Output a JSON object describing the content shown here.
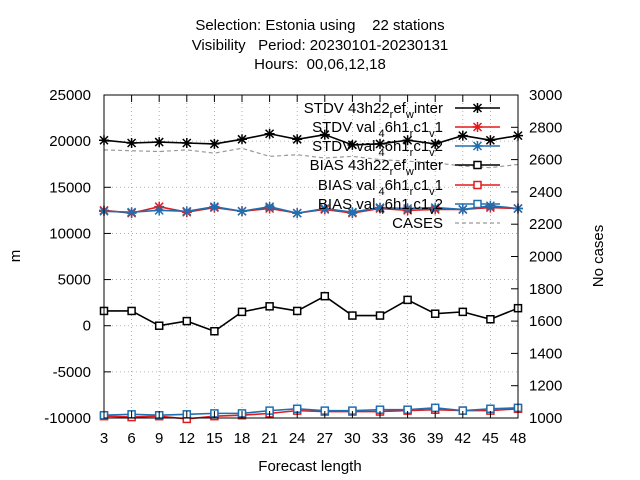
{
  "title": {
    "line1": "Selection: Estonia using    22 stations",
    "line2": "Visibility   Period: 20230101-20230131",
    "line3": "Hours:  00,06,12,18"
  },
  "chart_data": {
    "type": "line",
    "xlabel": "Forecast length",
    "ylabel": "m",
    "y2label": "No cases",
    "x": [
      3,
      6,
      9,
      12,
      15,
      18,
      21,
      24,
      27,
      30,
      33,
      36,
      39,
      42,
      45,
      48
    ],
    "xlim": [
      3,
      48
    ],
    "ylim": [
      -10000,
      25000
    ],
    "y2lim": [
      1000,
      3000
    ],
    "yticks": [
      -10000,
      -5000,
      0,
      5000,
      10000,
      15000,
      20000,
      25000
    ],
    "y2ticks": [
      1000,
      1200,
      1400,
      1600,
      1800,
      2000,
      2200,
      2400,
      2600,
      2800,
      3000
    ],
    "grid": true,
    "legend_position": "top-right",
    "series": [
      {
        "name": "STDV 43h22_ref_winter",
        "label_main": "STDV 43h22",
        "label_sub": "r",
        "label_mid": "ef",
        "label_sub2": "w",
        "label_end": "inter",
        "color": "#000000",
        "marker": "x",
        "axis": "y1",
        "values": [
          20100,
          19800,
          19900,
          19800,
          19700,
          20200,
          20800,
          20200,
          20700,
          19600,
          19700,
          20100,
          19700,
          20600,
          20100,
          20600
        ]
      },
      {
        "name": "STDV val_46h1_rc1_v1",
        "label_main": "STDV val",
        "label_sub": "4",
        "label_mid": "6h1",
        "label_sub2": "r",
        "label_end": "c1",
        "label_sub3": "v",
        "label_end2": "1",
        "color": "#e41a1c",
        "marker": "x",
        "axis": "y1",
        "values": [
          12500,
          12200,
          12900,
          12300,
          12800,
          12400,
          12700,
          12200,
          12600,
          12200,
          12700,
          12500,
          12600,
          12600,
          12800,
          12700
        ]
      },
      {
        "name": "STDV val_46h1_rc1_v2",
        "label_main": "STDV val",
        "label_sub": "4",
        "label_mid": "6h1",
        "label_sub2": "r",
        "label_end": "c1",
        "label_sub3": "v",
        "label_end2": "2",
        "color": "#1f6fb0",
        "marker": "x",
        "axis": "y1",
        "values": [
          12400,
          12300,
          12500,
          12400,
          12900,
          12400,
          12900,
          12200,
          12700,
          12300,
          12800,
          12700,
          12800,
          12600,
          13000,
          12700
        ]
      },
      {
        "name": "BIAS 43h22_ref_winter",
        "label_main": "BIAS 43h22",
        "label_sub": "r",
        "label_mid": "ef",
        "label_sub2": "w",
        "label_end": "inter",
        "color": "#000000",
        "marker": "square",
        "axis": "y1",
        "values": [
          1600,
          1600,
          0,
          500,
          -600,
          1500,
          2100,
          1600,
          3200,
          1100,
          1100,
          2800,
          1300,
          1500,
          700,
          1900
        ]
      },
      {
        "name": "BIAS val_46h1_rc1_v1",
        "label_main": "BIAS val",
        "label_sub": "4",
        "label_mid": "6h1",
        "label_sub2": "r",
        "label_end": "c1",
        "label_sub3": "v",
        "label_end2": "1",
        "color": "#e41a1c",
        "marker": "square",
        "axis": "y1",
        "values": [
          -9800,
          -9900,
          -9800,
          -10100,
          -9800,
          -9700,
          -9500,
          -9200,
          -9300,
          -9300,
          -9300,
          -9200,
          -9100,
          -9200,
          -9200,
          -9000
        ]
      },
      {
        "name": "BIAS val_46h1_rc1_v2",
        "label_main": "BIAS val",
        "label_sub": "4",
        "label_mid": "6h1",
        "label_sub2": "r",
        "label_end": "c1",
        "label_sub3": "v",
        "label_end2": "2",
        "color": "#1f6fb0",
        "marker": "square",
        "axis": "y1",
        "values": [
          -9700,
          -9600,
          -9700,
          -9600,
          -9500,
          -9500,
          -9200,
          -9000,
          -9200,
          -9200,
          -9100,
          -9100,
          -8900,
          -9200,
          -9000,
          -8900
        ]
      },
      {
        "name": "CASES",
        "label_main": "CASES",
        "color": "#999999",
        "dashed": true,
        "axis": "y2",
        "values": [
          2660,
          2655,
          2650,
          2660,
          2640,
          2670,
          2620,
          2630,
          2610,
          2620,
          2600,
          2590,
          2580,
          2560,
          2550,
          2570
        ]
      }
    ]
  }
}
